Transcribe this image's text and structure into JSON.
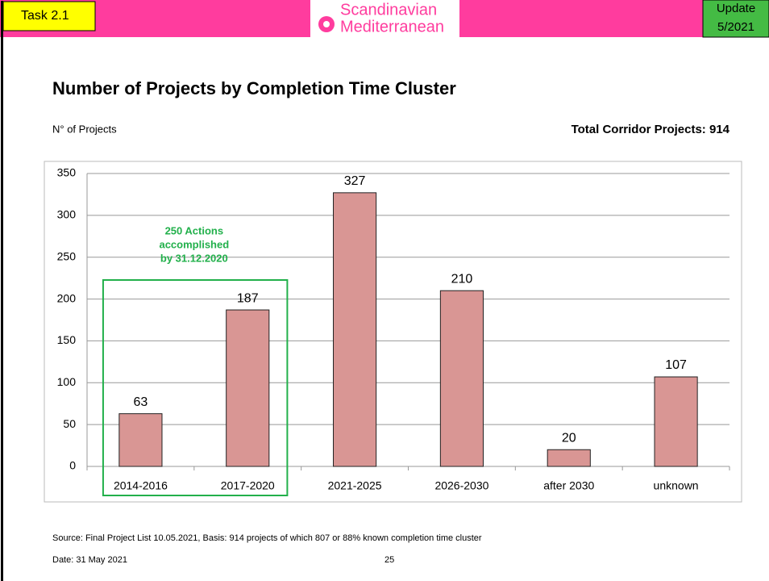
{
  "header": {
    "task": "Task 2.1",
    "logo": [
      "Scandinavian",
      "Mediterranean"
    ],
    "update": [
      "Update",
      "5/2021"
    ]
  },
  "chart_data": {
    "type": "bar",
    "title": "Number of Projects by Completion Time Cluster",
    "y_label": "N° of Projects",
    "subtitle": "Total Corridor Projects: 914",
    "categories": [
      "2014-2016",
      "2017-2020",
      "2021-2025",
      "2026-2030",
      "after 2030",
      "unknown"
    ],
    "values": [
      63,
      187,
      327,
      210,
      20,
      107
    ],
    "color": "#d99694",
    "ylim": [
      0,
      350
    ],
    "yticks": [
      0,
      50,
      100,
      150,
      200,
      250,
      300,
      350
    ],
    "grid": true,
    "annotation": [
      "250 Actions",
      "accomplished",
      "by 31.12.2020"
    ]
  },
  "footer": {
    "source": "Source: Final Project List 10.05.2021, Basis: 914 projects of which 807 or 88% known completion time cluster",
    "date": "Date: 31 May 2021",
    "page": "25"
  }
}
